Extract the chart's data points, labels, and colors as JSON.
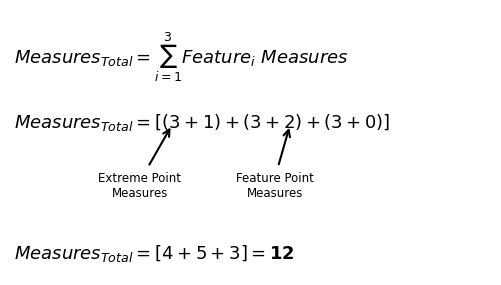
{
  "background_color": "#ffffff",
  "label1": "Extreme Point\nMeasures",
  "label2": "Feature Point\nMeasures",
  "figsize": [
    5.02,
    2.85
  ],
  "dpi": 100,
  "fontsize_eq": 13,
  "fontsize_label": 8.5
}
